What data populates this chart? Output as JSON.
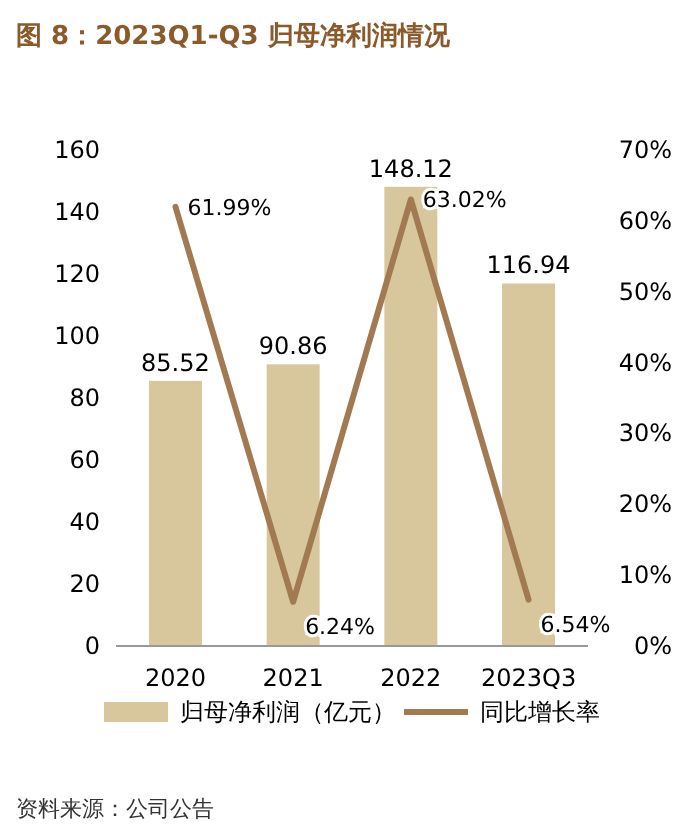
{
  "chart_data": {
    "type": "bar",
    "title": "图 8：2023Q1-Q3 归母净利润情况",
    "categories": [
      "2020",
      "2021",
      "2022",
      "2023Q3"
    ],
    "series": [
      {
        "name": "归母净利润（亿元）",
        "color": "#d8c69d",
        "values": [
          85.52,
          90.86,
          148.12,
          116.94
        ],
        "value_labels": [
          "85.52",
          "90.86",
          "148.12",
          "116.94"
        ]
      },
      {
        "name": "同比增长率",
        "type": "line",
        "axis": "y2",
        "color": "#a27a52",
        "values": [
          61.99,
          6.24,
          63.02,
          6.54
        ],
        "value_labels": [
          "61.99%",
          "6.24%",
          "63.02%",
          "6.54%"
        ]
      }
    ],
    "ylim": [
      0,
      160
    ],
    "yticks": [
      0,
      20,
      40,
      60,
      80,
      100,
      120,
      140,
      160
    ],
    "y2lim": [
      0,
      70
    ],
    "y2ticks": [
      {
        "value": 0,
        "label": "0%"
      },
      {
        "value": 10,
        "label": "10%"
      },
      {
        "value": 20,
        "label": "20%"
      },
      {
        "value": 30,
        "label": "30%"
      },
      {
        "value": 40,
        "label": "40%"
      },
      {
        "value": 50,
        "label": "50%"
      },
      {
        "value": 60,
        "label": "60%"
      },
      {
        "value": 70,
        "label": "70%"
      }
    ],
    "legend": "bottom",
    "annotations": [
      "资料来源：公司公告"
    ]
  }
}
